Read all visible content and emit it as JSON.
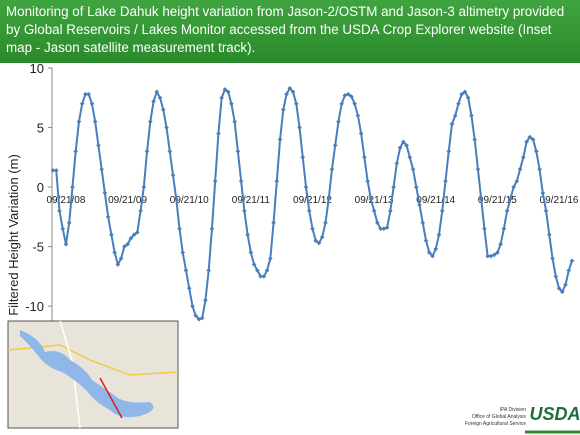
{
  "chart_data": {
    "type": "line",
    "title": "Monitoring of Lake Dahuk height variation from Jason-2/OSTM and Jason-3 altimetry provided by Global Reservoirs / Lakes Monitor accessed from the USDA Crop Explorer website (Inset map - Jason satellite measurement track).",
    "y_label": "Filtered  Height  Variation  (m)",
    "categories": [
      null,
      null,
      null,
      null,
      "09/21/08",
      null,
      null,
      null,
      null,
      null,
      null,
      null,
      null,
      null,
      null,
      null,
      null,
      null,
      null,
      null,
      null,
      null,
      null,
      "09/21/09",
      null,
      null,
      null,
      null,
      null,
      null,
      null,
      null,
      null,
      null,
      null,
      null,
      null,
      null,
      null,
      null,
      null,
      null,
      "09/21/10",
      null,
      null,
      null,
      null,
      null,
      null,
      null,
      null,
      null,
      null,
      null,
      null,
      null,
      null,
      null,
      null,
      null,
      null,
      "09/21/11",
      null,
      null,
      null,
      null,
      null,
      null,
      null,
      null,
      null,
      null,
      null,
      null,
      null,
      null,
      null,
      null,
      null,
      null,
      "09/21/12",
      null,
      null,
      null,
      null,
      null,
      null,
      null,
      null,
      null,
      null,
      null,
      null,
      null,
      null,
      null,
      null,
      null,
      null,
      "09/21/13",
      null,
      null,
      null,
      null,
      null,
      null,
      null,
      null,
      null,
      null,
      null,
      null,
      null,
      null,
      null,
      null,
      null,
      null,
      "09/21/14",
      null,
      null,
      null,
      null,
      null,
      null,
      null,
      null,
      null,
      null,
      null,
      null,
      null,
      null,
      null,
      null,
      null,
      null,
      "09/21/15",
      null,
      null,
      null,
      null,
      null,
      null,
      null,
      null,
      null,
      null,
      null,
      null,
      null,
      null,
      null,
      null,
      null,
      null,
      "09/21/16",
      null,
      null,
      null,
      null
    ],
    "series": [
      {
        "color": "#4a7ebb",
        "values": [
          1.4,
          1.4,
          -2,
          -3.5,
          -4.8,
          -3,
          0,
          3,
          5.5,
          7,
          7.8,
          7.8,
          7,
          5.5,
          3.5,
          1.5,
          -0.5,
          -2.5,
          -4,
          -5.5,
          -6.5,
          -6,
          -5,
          -4.8,
          -4.3,
          -4,
          -3.8,
          -2,
          0,
          3,
          5.5,
          7.2,
          8,
          7.5,
          6.5,
          5,
          3,
          1,
          -1,
          -3.5,
          -5.5,
          -7,
          -8.5,
          -10,
          -10.8,
          -11.1,
          -11,
          -9.5,
          -7,
          -3.5,
          0.5,
          4.5,
          7.5,
          8.2,
          8,
          7,
          5.5,
          3,
          0.5,
          -2,
          -4,
          -5.5,
          -6.5,
          -7,
          -7.5,
          -7.5,
          -7,
          -6,
          -3,
          0.5,
          4,
          6.5,
          7.8,
          8.3,
          8,
          7,
          5,
          2.5,
          0,
          -2,
          -3.5,
          -4.5,
          -4.7,
          -4.2,
          -3,
          -1,
          1.5,
          3.5,
          5.5,
          7,
          7.7,
          7.8,
          7.6,
          7,
          6,
          4.5,
          2.5,
          0.5,
          -1,
          -2,
          -3,
          -3.5,
          -3.5,
          -3.4,
          -2,
          0,
          2,
          3.3,
          3.8,
          3.5,
          2.5,
          1.5,
          0,
          -1.5,
          -3,
          -4.5,
          -5.5,
          -5.8,
          -5.2,
          -4,
          -2,
          0.5,
          3,
          5.3,
          6,
          7,
          7.8,
          8,
          7.5,
          6,
          4,
          1.5,
          -1,
          -3.5,
          -5.8,
          -5.8,
          -5.7,
          -5.5,
          -4.8,
          -3.5,
          -2,
          -1,
          0,
          0.5,
          1.5,
          2.5,
          3.8,
          4.2,
          4,
          3,
          1.5,
          -0.5,
          -2,
          -4,
          -6,
          -7.5,
          -8.5,
          -8.8,
          -8.2,
          -7,
          -6.2
        ]
      }
    ],
    "ylim": [
      -11.5,
      10
    ],
    "yticks": [
      10,
      5,
      0,
      -5,
      -10
    ],
    "grid": false
  },
  "footer": {
    "logo": "USDA",
    "lines": [
      "IPA Division",
      "Office of Global Analysis",
      "Foreign Agricultural Service"
    ]
  }
}
